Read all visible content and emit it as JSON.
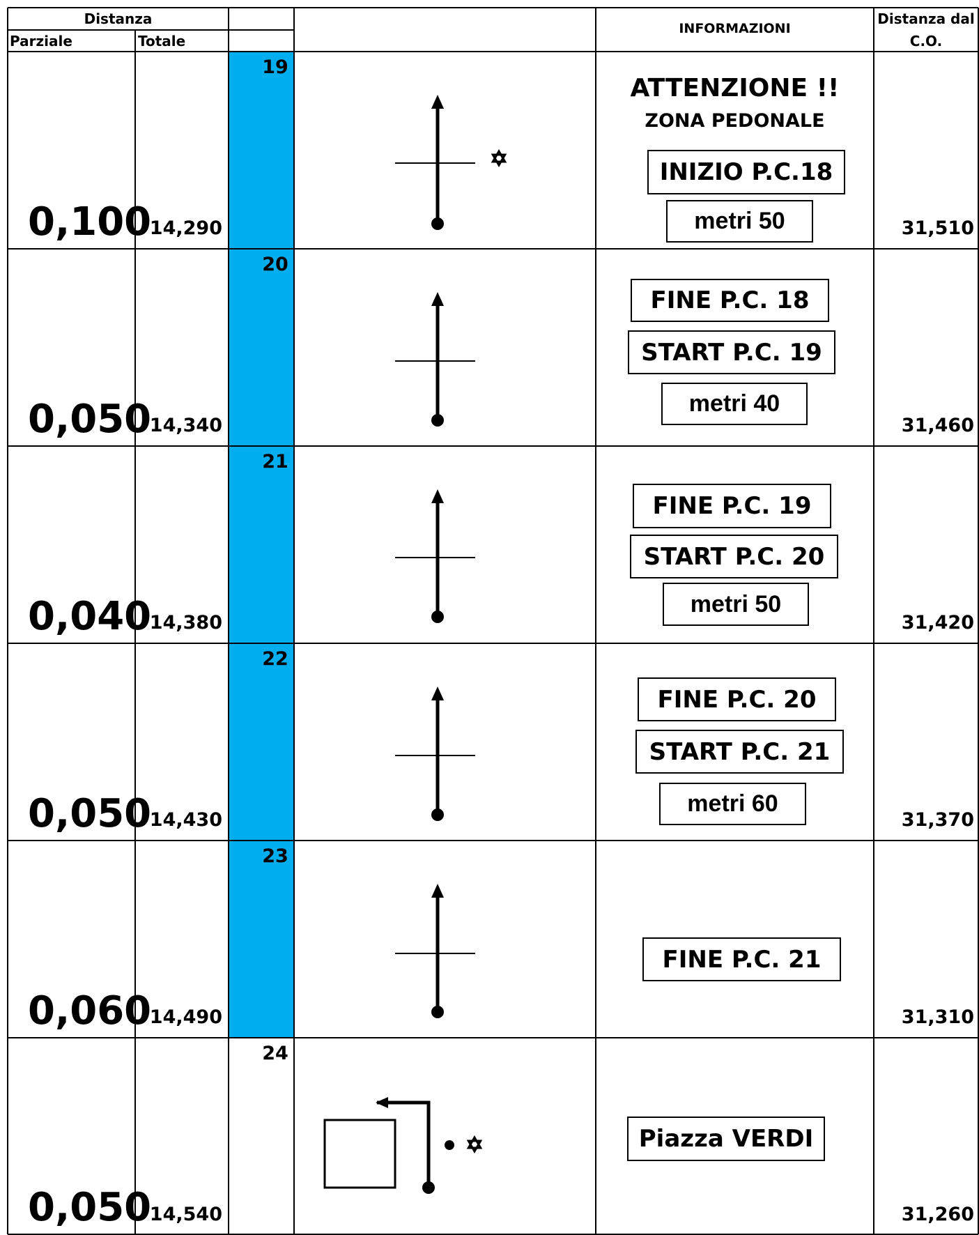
{
  "header": {
    "distanza": "Distanza",
    "parziale": "Parziale",
    "totale": "Totale",
    "informazioni": "INFORMAZIONI",
    "distanza_co_line1": "Distanza dal",
    "distanza_co_line2": "C.O."
  },
  "colors": {
    "highlight": "#00AEEF",
    "line": "#000000",
    "background": "#FFFFFF"
  },
  "rows": [
    {
      "step": "19",
      "parziale": "0,100",
      "totale": "14,290",
      "distanza_co": "31,510",
      "highlighted": true,
      "symbol": "straight-with-crossing-and-landmark-right",
      "info": {
        "heading": "ATTENZIONE !!",
        "subheading": "ZONA PEDONALE",
        "boxes": [
          "INIZIO P.C.18",
          "metri 50"
        ]
      }
    },
    {
      "step": "20",
      "parziale": "0,050",
      "totale": "14,340",
      "distanza_co": "31,460",
      "highlighted": true,
      "symbol": "straight-with-crossing",
      "info": {
        "boxes": [
          "FINE P.C. 18",
          "START P.C. 19",
          "metri 40"
        ]
      }
    },
    {
      "step": "21",
      "parziale": "0,040",
      "totale": "14,380",
      "distanza_co": "31,420",
      "highlighted": true,
      "symbol": "straight-with-crossing",
      "info": {
        "boxes": [
          "FINE P.C. 19",
          "START P.C. 20",
          "metri 50"
        ]
      }
    },
    {
      "step": "22",
      "parziale": "0,050",
      "totale": "14,430",
      "distanza_co": "31,370",
      "highlighted": true,
      "symbol": "straight-with-crossing",
      "info": {
        "boxes": [
          "FINE P.C. 20",
          "START P.C. 21",
          "metri 60"
        ]
      }
    },
    {
      "step": "23",
      "parziale": "0,060",
      "totale": "14,490",
      "distanza_co": "31,310",
      "highlighted": true,
      "symbol": "straight-with-crossing",
      "info": {
        "boxes": [
          "FINE P.C. 21"
        ]
      }
    },
    {
      "step": "24",
      "parziale": "0,050",
      "totale": "14,540",
      "distanza_co": "31,260",
      "highlighted": false,
      "symbol": "left-turn-around-square-with-landmark",
      "info": {
        "boxes": [
          "Piazza VERDI"
        ]
      }
    }
  ]
}
